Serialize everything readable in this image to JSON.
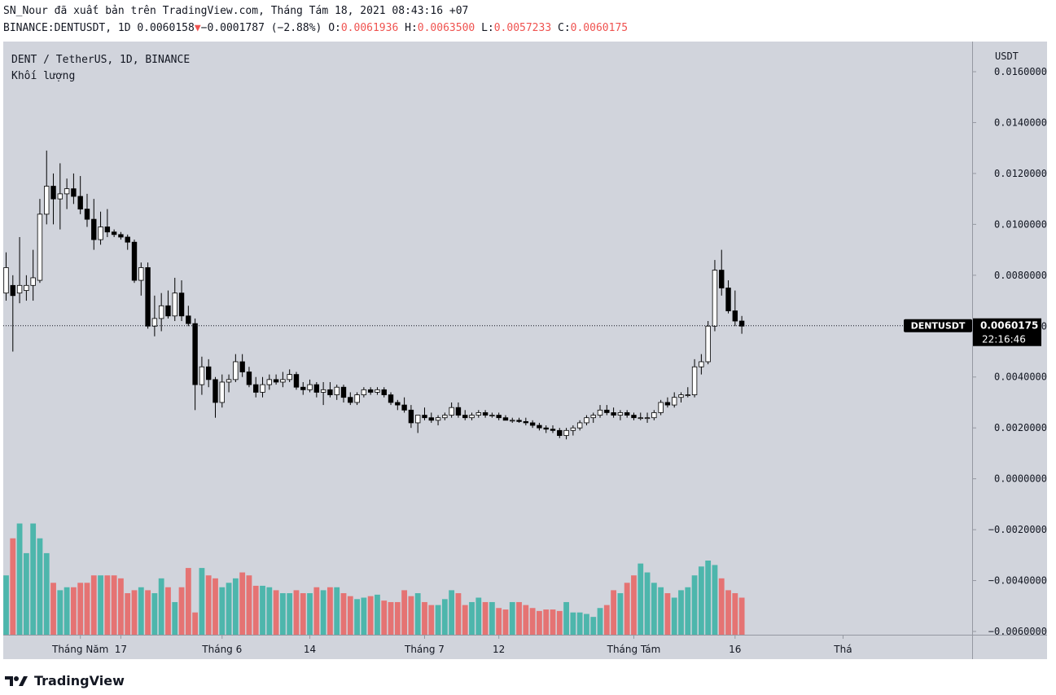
{
  "header": {
    "published_line": "SN_Nour đã xuất bản trên TradingView.com, Tháng Tám 18, 2021 08:43:16 +07",
    "symbol_prefix": "BINANCE:DENTUSDT, 1D 0.0060158",
    "change": "−0.0001787 (−2.88%)",
    "o_label": "O:",
    "o_value": "0.0061936",
    "h_label": "H:",
    "h_value": "0.0063500",
    "l_label": "L:",
    "l_value": "0.0057233",
    "c_label": "C:",
    "c_value": "0.0060175"
  },
  "legend": {
    "symbol_desc": "DENT / TetherUS, 1D, BINANCE",
    "volume_label": "Khối lượng"
  },
  "price_axis": {
    "unit": "USDT"
  },
  "last_price": {
    "label": "DENTUSDT",
    "value": "0.0060175",
    "countdown": "22:16:46"
  },
  "logo": {
    "text": "TradingView"
  },
  "colors": {
    "background": "#d1d4dc",
    "up_body": "#ffffff",
    "down_body": "#000000",
    "wick": "#000000",
    "volume_up": "#4db6ac",
    "volume_down": "#e57373",
    "change_red": "#ef5350"
  },
  "chart_data": {
    "type": "candlestick",
    "y_axis": {
      "min": -0.006,
      "max": 0.016,
      "ticks": [
        "0.0160000",
        "0.0140000",
        "0.0120000",
        "0.0100000",
        "0.0080000",
        "0.0060000",
        "0.0040000",
        "0.0020000",
        "0.0000000",
        "−0.0020000",
        "−0.0040000",
        "−0.0060000"
      ]
    },
    "x_axis_labels": [
      {
        "label": "Tháng Năm",
        "day": 11
      },
      {
        "label": "17",
        "day": 17
      },
      {
        "label": "Tháng 6",
        "day": 32
      },
      {
        "label": "14",
        "day": 45
      },
      {
        "label": "Tháng 7",
        "day": 62
      },
      {
        "label": "12",
        "day": 73
      },
      {
        "label": "Tháng Tám",
        "day": 93
      },
      {
        "label": "16",
        "day": 108
      },
      {
        "label": "Thá",
        "day": 124
      }
    ],
    "candles": [
      [
        0.0073,
        0.0089,
        0.007,
        0.0083
      ],
      [
        0.0076,
        0.008,
        0.005,
        0.0072
      ],
      [
        0.0073,
        0.0095,
        0.0069,
        0.0076
      ],
      [
        0.0074,
        0.008,
        0.007,
        0.0076
      ],
      [
        0.0076,
        0.009,
        0.007,
        0.0079
      ],
      [
        0.0078,
        0.011,
        0.0077,
        0.0104
      ],
      [
        0.0104,
        0.0129,
        0.01,
        0.0115
      ],
      [
        0.0115,
        0.012,
        0.01,
        0.011
      ],
      [
        0.011,
        0.0124,
        0.0098,
        0.0112
      ],
      [
        0.0112,
        0.0118,
        0.0106,
        0.0114
      ],
      [
        0.0114,
        0.012,
        0.0108,
        0.0111
      ],
      [
        0.0111,
        0.0119,
        0.0104,
        0.0106
      ],
      [
        0.0106,
        0.0112,
        0.0099,
        0.0102
      ],
      [
        0.0102,
        0.011,
        0.009,
        0.0094
      ],
      [
        0.0094,
        0.0105,
        0.0092,
        0.0099
      ],
      [
        0.0099,
        0.0106,
        0.0095,
        0.0097
      ],
      [
        0.0097,
        0.0098,
        0.0095,
        0.0096
      ],
      [
        0.0096,
        0.0097,
        0.0094,
        0.0095
      ],
      [
        0.0095,
        0.0096,
        0.009,
        0.0093
      ],
      [
        0.0093,
        0.0094,
        0.0077,
        0.0078
      ],
      [
        0.0078,
        0.0085,
        0.0072,
        0.0083
      ],
      [
        0.0083,
        0.0085,
        0.0059,
        0.006
      ],
      [
        0.006,
        0.0072,
        0.0056,
        0.0063
      ],
      [
        0.0063,
        0.0073,
        0.0058,
        0.0068
      ],
      [
        0.0068,
        0.0074,
        0.0063,
        0.0064
      ],
      [
        0.0064,
        0.0079,
        0.0062,
        0.0073
      ],
      [
        0.0073,
        0.0078,
        0.0062,
        0.0064
      ],
      [
        0.0064,
        0.0068,
        0.006,
        0.0061
      ],
      [
        0.0061,
        0.0063,
        0.0027,
        0.0037
      ],
      [
        0.0037,
        0.0048,
        0.0033,
        0.0044
      ],
      [
        0.0044,
        0.0047,
        0.0036,
        0.0039
      ],
      [
        0.0039,
        0.004,
        0.0024,
        0.003
      ],
      [
        0.003,
        0.0041,
        0.0028,
        0.0038
      ],
      [
        0.0038,
        0.0041,
        0.0034,
        0.0039
      ],
      [
        0.0039,
        0.0049,
        0.0038,
        0.0046
      ],
      [
        0.0046,
        0.0049,
        0.004,
        0.0042
      ],
      [
        0.0042,
        0.0044,
        0.0036,
        0.0037
      ],
      [
        0.0037,
        0.004,
        0.0032,
        0.0034
      ],
      [
        0.0034,
        0.004,
        0.0032,
        0.0037
      ],
      [
        0.0037,
        0.0041,
        0.0035,
        0.0039
      ],
      [
        0.0039,
        0.0041,
        0.0037,
        0.0038
      ],
      [
        0.0038,
        0.0042,
        0.0036,
        0.0039
      ],
      [
        0.0039,
        0.0043,
        0.0038,
        0.0041
      ],
      [
        0.0041,
        0.0042,
        0.0035,
        0.0036
      ],
      [
        0.0036,
        0.0038,
        0.0033,
        0.0035
      ],
      [
        0.0035,
        0.0039,
        0.0034,
        0.0037
      ],
      [
        0.0037,
        0.0038,
        0.0032,
        0.0034
      ],
      [
        0.0034,
        0.0038,
        0.0029,
        0.0035
      ],
      [
        0.0035,
        0.0038,
        0.0032,
        0.0033
      ],
      [
        0.0033,
        0.0037,
        0.0031,
        0.0036
      ],
      [
        0.0036,
        0.0037,
        0.003,
        0.0032
      ],
      [
        0.0032,
        0.0034,
        0.0029,
        0.003
      ],
      [
        0.003,
        0.0034,
        0.0029,
        0.0033
      ],
      [
        0.0033,
        0.0036,
        0.0032,
        0.0035
      ],
      [
        0.0035,
        0.0036,
        0.0033,
        0.0034
      ],
      [
        0.0034,
        0.0036,
        0.0033,
        0.0035
      ],
      [
        0.0035,
        0.0036,
        0.0032,
        0.0033
      ],
      [
        0.0033,
        0.0034,
        0.0029,
        0.003
      ],
      [
        0.003,
        0.0031,
        0.0027,
        0.0029
      ],
      [
        0.0029,
        0.0032,
        0.0026,
        0.0027
      ],
      [
        0.0027,
        0.0029,
        0.002,
        0.0022
      ],
      [
        0.0022,
        0.0025,
        0.0018,
        0.0025
      ],
      [
        0.0025,
        0.0028,
        0.0023,
        0.0024
      ],
      [
        0.0024,
        0.0026,
        0.0022,
        0.0023
      ],
      [
        0.0023,
        0.0025,
        0.0021,
        0.0024
      ],
      [
        0.0024,
        0.0026,
        0.0023,
        0.0025
      ],
      [
        0.0025,
        0.003,
        0.0024,
        0.0028
      ],
      [
        0.0028,
        0.003,
        0.0024,
        0.0025
      ],
      [
        0.0025,
        0.0027,
        0.0023,
        0.0024
      ],
      [
        0.0024,
        0.0026,
        0.0023,
        0.0025
      ],
      [
        0.0025,
        0.0027,
        0.0024,
        0.0026
      ],
      [
        0.0026,
        0.0027,
        0.0024,
        0.0025
      ],
      [
        0.0025,
        0.0026,
        0.0024,
        0.0025
      ],
      [
        0.0025,
        0.0026,
        0.0023,
        0.0024
      ],
      [
        0.0024,
        0.0025,
        0.0023,
        0.0023
      ],
      [
        0.0023,
        0.0024,
        0.0022,
        0.0023
      ],
      [
        0.0023,
        0.0024,
        0.0022,
        0.00225
      ],
      [
        0.00225,
        0.0024,
        0.0021,
        0.0022
      ],
      [
        0.0022,
        0.0023,
        0.002,
        0.0021
      ],
      [
        0.0021,
        0.0022,
        0.0019,
        0.002
      ],
      [
        0.002,
        0.0021,
        0.0018,
        0.00195
      ],
      [
        0.00195,
        0.0021,
        0.0018,
        0.0019
      ],
      [
        0.0019,
        0.002,
        0.0016,
        0.0017
      ],
      [
        0.0017,
        0.002,
        0.00155,
        0.0019
      ],
      [
        0.0019,
        0.0021,
        0.0017,
        0.002
      ],
      [
        0.002,
        0.0023,
        0.0019,
        0.0022
      ],
      [
        0.0022,
        0.0025,
        0.0021,
        0.0024
      ],
      [
        0.0024,
        0.0026,
        0.0022,
        0.0025
      ],
      [
        0.0025,
        0.0029,
        0.0024,
        0.0027
      ],
      [
        0.0027,
        0.0029,
        0.0025,
        0.0026
      ],
      [
        0.0026,
        0.0028,
        0.0024,
        0.0025
      ],
      [
        0.0025,
        0.0027,
        0.0023,
        0.0026
      ],
      [
        0.0026,
        0.0027,
        0.0024,
        0.0025
      ],
      [
        0.0025,
        0.0026,
        0.0023,
        0.0024
      ],
      [
        0.0024,
        0.0026,
        0.0023,
        0.0024
      ],
      [
        0.0024,
        0.0026,
        0.0022,
        0.0024
      ],
      [
        0.0024,
        0.0027,
        0.0023,
        0.0026
      ],
      [
        0.0026,
        0.0031,
        0.0025,
        0.003
      ],
      [
        0.003,
        0.0032,
        0.0028,
        0.0029
      ],
      [
        0.0029,
        0.0034,
        0.0028,
        0.0032
      ],
      [
        0.0032,
        0.0034,
        0.003,
        0.0033
      ],
      [
        0.0033,
        0.0036,
        0.0032,
        0.0033
      ],
      [
        0.0033,
        0.0047,
        0.0032,
        0.0044
      ],
      [
        0.0044,
        0.0049,
        0.0041,
        0.0046
      ],
      [
        0.0046,
        0.0062,
        0.0045,
        0.006
      ],
      [
        0.006,
        0.0086,
        0.0058,
        0.0082
      ],
      [
        0.0082,
        0.009,
        0.0072,
        0.0075
      ],
      [
        0.0075,
        0.0078,
        0.0065,
        0.0066
      ],
      [
        0.0066,
        0.0074,
        0.006,
        0.0062
      ],
      [
        0.0062,
        0.0064,
        0.0057,
        0.006
      ]
    ],
    "volume": [
      0.4,
      0.65,
      0.75,
      0.55,
      0.75,
      0.65,
      0.55,
      0.35,
      0.3,
      0.32,
      0.32,
      0.35,
      0.35,
      0.4,
      0.4,
      0.4,
      0.4,
      0.38,
      0.28,
      0.3,
      0.32,
      0.3,
      0.28,
      0.38,
      0.32,
      0.22,
      0.32,
      0.45,
      0.15,
      0.45,
      0.4,
      0.38,
      0.32,
      0.35,
      0.38,
      0.42,
      0.4,
      0.33,
      0.33,
      0.32,
      0.3,
      0.28,
      0.28,
      0.3,
      0.28,
      0.28,
      0.32,
      0.3,
      0.32,
      0.32,
      0.28,
      0.26,
      0.24,
      0.25,
      0.26,
      0.27,
      0.23,
      0.22,
      0.22,
      0.3,
      0.26,
      0.28,
      0.22,
      0.2,
      0.2,
      0.24,
      0.3,
      0.28,
      0.2,
      0.22,
      0.25,
      0.22,
      0.22,
      0.18,
      0.17,
      0.22,
      0.22,
      0.2,
      0.18,
      0.16,
      0.17,
      0.17,
      0.16,
      0.22,
      0.15,
      0.15,
      0.14,
      0.12,
      0.18,
      0.2,
      0.3,
      0.28,
      0.35,
      0.4,
      0.48,
      0.42,
      0.35,
      0.32,
      0.28,
      0.25,
      0.3,
      0.32,
      0.4,
      0.46,
      0.5,
      0.47,
      0.38,
      0.3,
      0.28,
      0.25
    ],
    "last_value": 0.0060175
  }
}
